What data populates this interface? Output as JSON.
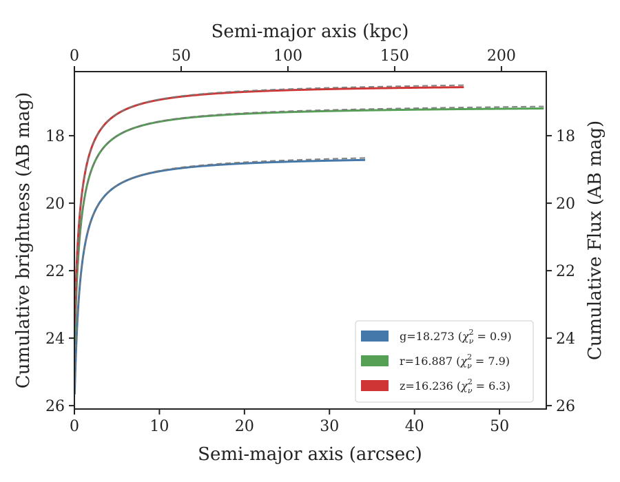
{
  "chart_data": {
    "type": "line",
    "xlabel_bottom": "Semi-major axis (arcsec)",
    "xlabel_top": "Semi-major axis (kpc)",
    "ylabel_left": "Cumulative brightness (AB mag)",
    "ylabel_right": "Cumulative Flux (AB mag)",
    "xlim": [
      0,
      55.5
    ],
    "ylim": [
      26.1,
      16.1
    ],
    "xlim_top": [
      0,
      221
    ],
    "x_ticks": [
      0,
      10,
      20,
      30,
      40,
      50
    ],
    "x_ticks_top": [
      0,
      50,
      100,
      150,
      200
    ],
    "y_ticks": [
      18,
      20,
      22,
      24,
      26
    ],
    "grid": false,
    "legend_placement": "lower-right",
    "series": [
      {
        "name": "g=18.273 (χ²ν = 0.9)",
        "legend_main": "g=18.273 (",
        "legend_chi": "χ",
        "legend_sup": "2",
        "legend_sub": "ν",
        "legend_eq": " = 0.9)",
        "color": "#4477aa",
        "x_max": 34.2,
        "asymptote": 18.57,
        "amp": 7.4,
        "scale": 0.7,
        "x": [
          0.2,
          0.5,
          1,
          2,
          3,
          4,
          5,
          7,
          10,
          15,
          20,
          25,
          30,
          34.2
        ],
        "values": [
          25.6,
          24.0,
          22.3,
          20.9,
          20.2,
          19.8,
          19.55,
          19.25,
          19.05,
          18.9,
          18.78,
          18.72,
          18.68,
          18.66
        ]
      },
      {
        "name": "r=16.887 (χ²ν = 7.9)",
        "legend_main": "r=16.887 (",
        "legend_chi": "χ",
        "legend_sup": "2",
        "legend_sub": "ν",
        "legend_eq": " = 7.9)",
        "color": "#55a055",
        "x_max": 55.2,
        "asymptote": 17.1,
        "amp": 7.4,
        "scale": 0.7,
        "x": [
          0.2,
          0.5,
          1,
          2,
          3,
          4,
          5,
          7,
          10,
          15,
          20,
          30,
          40,
          55.2
        ],
        "values": [
          25.0,
          23.3,
          21.0,
          19.4,
          18.7,
          18.35,
          18.1,
          17.8,
          17.6,
          17.45,
          17.35,
          17.27,
          17.23,
          17.18
        ]
      },
      {
        "name": "z=16.236 (χ²ν = 6.3)",
        "legend_main": "z=16.236 (",
        "legend_chi": "χ",
        "legend_sup": "2",
        "legend_sub": "ν",
        "legend_eq": " = 6.3)",
        "color": "#d03535",
        "x_max": 45.8,
        "asymptote": 16.45,
        "amp": 7.4,
        "scale": 0.7,
        "x": [
          0.2,
          0.5,
          1,
          2,
          3,
          4,
          5,
          7,
          10,
          15,
          20,
          30,
          40,
          45.8
        ],
        "values": [
          23.5,
          21.0,
          19.3,
          18.0,
          17.5,
          17.25,
          17.1,
          16.95,
          16.85,
          16.75,
          16.7,
          16.64,
          16.6,
          16.58
        ]
      }
    ],
    "model_line_color": "#777777"
  }
}
